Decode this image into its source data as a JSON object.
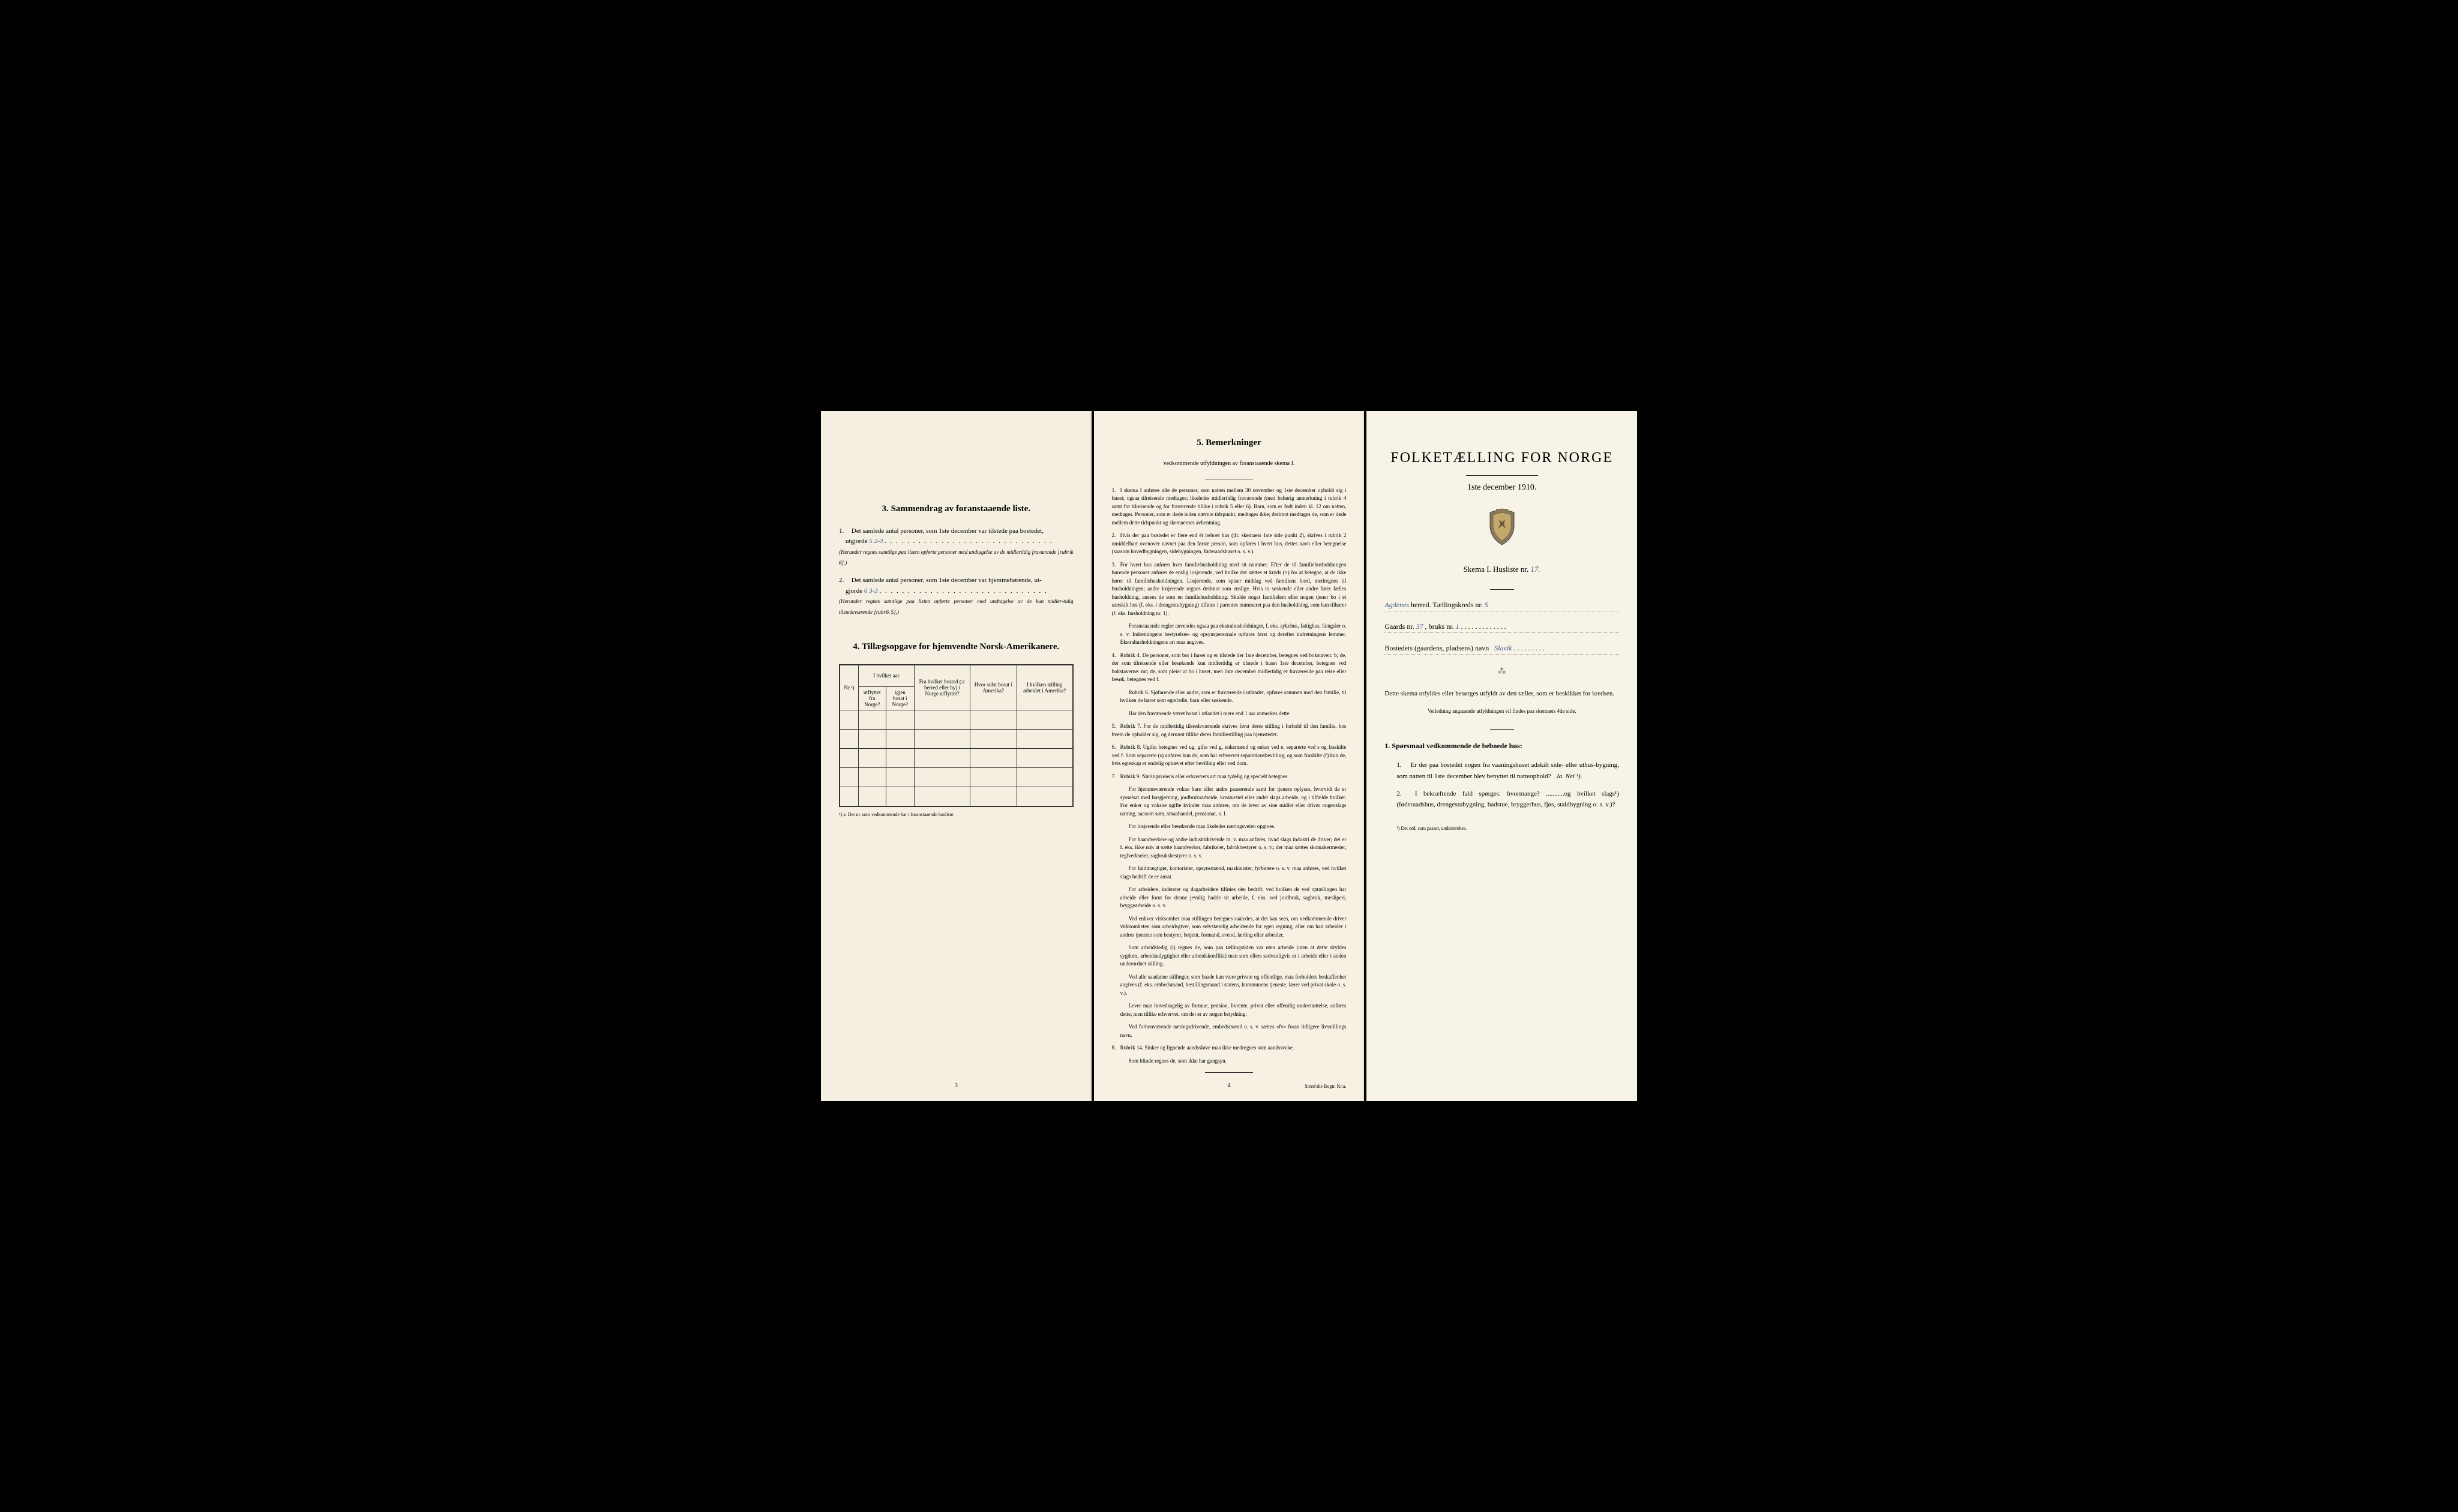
{
  "page1": {
    "section3_title": "3.   Sammendrag av foranstaaende liste.",
    "item1_prefix": "1.",
    "item1_text": "Det samlede antal personer, som 1ste december var tilstede paa bostedet,",
    "item1_line2": "utgjorde",
    "item1_handwritten": "5        2-3",
    "item1_note": "(Herunder regnes samtlige paa listen opførte personer med undtagelse av de midlertidig fraværende [rubrik 6].)",
    "item2_prefix": "2.",
    "item2_text": "Det samlede antal personer, som 1ste december var hjemmehørende, ut-",
    "item2_line2": "gjorde",
    "item2_handwritten": "6        3-3",
    "item2_note": "(Herunder regnes samtlige paa listen opførte personer med undtagelse av de kun midler-tidig tilstedeværende [rubrik 5].)",
    "section4_title": "4.   Tillægsopgave for hjemvendte Norsk-Amerikanere.",
    "table": {
      "headers": {
        "col1": "Nr.¹)",
        "col2_top": "I hvilket aar",
        "col2a": "utflyttet fra Norge?",
        "col2b": "igjen bosat i Norge?",
        "col3": "Fra hvilket bosted (ɔ: herred eller by) i Norge utflyttet?",
        "col4": "Hvor sidst bosat i Amerika?",
        "col5": "I hvilken stilling arbeidet i Amerika?"
      }
    },
    "footnote": "¹) ɔ: Det nr. som vedkommende har i foranstaaende husliste.",
    "page_num": "3"
  },
  "page2": {
    "title": "5.   Bemerkninger",
    "subtitle": "vedkommende utfyldningen av foranstaaende skema I.",
    "remarks": [
      {
        "num": "1.",
        "text": "I skema I anføres alle de personer, som natten mellem 30 november og 1ste december opholdt sig i huset; ogsaa tilreisende medtages; likeledes midlertidig fraværende (med behørig anmerkning i rubrik 4 samt for tilreisende og for fraværende tillike i rubrik 5 eller 6). Barn, som er født inden kl. 12 om natten, medtages. Personer, som er døde inden nævnte tidspunkt, medtages ikke; derimot medtages de, som er døde mellem dette tidspunkt og skemaernes avhentning."
      },
      {
        "num": "2.",
        "text": "Hvis der paa bostedet er flere end ét beboet hus (jfr. skemaets 1ste side punkt 2), skrives i rubrik 2 umiddelbart ovenover navnet paa den første person, som opføres i hvert hus, dettes navn eller betegnelse (saasom hovedbygningen, sidebygningen, føderaadshuset o. s. v.)."
      },
      {
        "num": "3.",
        "text": "For hvert hus anføres hver familiehusholdning med sit nummer. Efter de til familiehusholdningen hørende personer anføres de enslig losjerende, ved hvilke der sættes et kryds (×) for at betegne, at de ikke hører til familiehusholdningen. Losjerende, som spiser middag ved familiens bord, medregnes til husholdningen; andre losjerende regnes derimot som enslige. Hvis to søskende eller andre fører fælles husholdning, ansees de som en familiehusholdning. Skulde noget familielem eller nogen tjener bo i et særskilt hus (f. eks. i drengestubygning) tilføies i parentes nummeret paa den husholdning, som han tilhører (f. eks. husholdning nr. 1)."
      },
      {
        "num": "",
        "text": "Foranstaaende regler anvendes ogsaa paa ekstrahusholdninger, f. eks. sykehus, fattighus, fængsler o. s. v. Indretningens bestyrelses- og opsynspersonale opføres først og derefter indretningens lemmer. Ekstrahusholdningens art maa angives."
      },
      {
        "num": "4.",
        "text": "Rubrik 4. De personer, som bor i huset og er tilstede der 1ste december, betegnes ved bokstaven: b; de, der som tilreisende eller besøkende kun midlertidig er tilstede i huset 1ste december, betegnes ved bokstaverne: mt; de, som pleier at bo i huset, men 1ste december midlertidig er fraværende paa reise eller besøk, betegnes ved f."
      },
      {
        "num": "",
        "text": "Rubrik 6. Sjøfarende eller andre, som er fraværende i utlandet, opføres sammen med den familie, til hvilken de hører som egtefælle, barn eller søskende."
      },
      {
        "num": "",
        "text": "Har den fraværende været bosat i utlandet i mere end 1 aar anmerkes dette."
      },
      {
        "num": "5.",
        "text": "Rubrik 7. For de midlertidig tilstedeværende skrives først deres stilling i forhold til den familie, hos hvem de opholder sig, og dernæst tillike deres familiestilling paa hjemstedet."
      },
      {
        "num": "6.",
        "text": "Rubrik 8. Ugifte betegnes ved ug, gifte ved g, enkemænd og enker ved e, separerte ved s og fraskilte ved f. Som separerte (s) anføres kun de, som har erhvervet separationsbevilling, og som fraskilte (f) kun de, hvis egteskap er endelig ophævet efter bevilling eller ved dom."
      },
      {
        "num": "7.",
        "text": "Rubrik 9. Næringsveiens eller erhvervets art maa tydelig og specielt betegnes."
      },
      {
        "num": "",
        "text": "For hjemmeværende vokne barn eller andre paarørende samt for tjenere oplyses, hvorvidt de er sysselsat med husgjerning, jordbruksarbeide, kreaturstel eller andet slags arbeide, og i tilfælde hvilket. For enker og voksne ugifte kvinder maa anføres, om de lever av sine midler eller driver nogenslags næring, saasom søm, smaahandel, pensionat, o. l."
      },
      {
        "num": "",
        "text": "For losjerende eller besøkende maa likeledes næringsveien opgives."
      },
      {
        "num": "",
        "text": "For haandverkere og andre industridrivende m. v. maa anføres, hvad slags industri de driver; det er f. eks. ikke nok at sætte haandverker, fabrikeier, fabrikbestyrer o. s. v.; der maa sættes skomakermester, teglverkseier, sagbruksbestyrer o. s. v."
      },
      {
        "num": "",
        "text": "For fuldmægtiger, kontorister, opsynsmænd, maskinister, fyrbøtere o. s. v. maa anføres, ved hvilket slags bedrift de er ansat."
      },
      {
        "num": "",
        "text": "For arbeidere, inderster og dagarbeidere tilføies den bedrift, ved hvilken de ved optællingen har arbeide eller forut for denne jevnlig hadde sit arbeide, f. eks. ved jordbruk, sagbruk, træsliperi, bryggearbeide o. s. v."
      },
      {
        "num": "",
        "text": "Ved enhver virksomhet maa stillingen betegnes saaledes, at det kan sees, om vedkommende driver virksomheten som arbeidsgiver, som selvstændig arbeidende for egen regning, eller om han arbeider i andres tjeneste som bestyrer, betjent, formand, svend, lærling eller arbeider."
      },
      {
        "num": "",
        "text": "Som arbeidsledig (l) regnes de, som paa tællingstiden var uten arbeide (uten at dette skyldes sygdom, arbeidsudygtighet eller arbeidskonflikt) men som ellers sedvanligvis er i arbeide eller i anden underordnet stilling."
      },
      {
        "num": "",
        "text": "Ved alle saadanne stillinger, som baade kan være private og offentlige, maa forholdets beskaffenhet angives (f. eks. embedsmand, bestillingsmand i statens, kommunens tjeneste, lærer ved privat skole o. s. v.)."
      },
      {
        "num": "",
        "text": "Lever man hovedsagelig av formue, pension, livrente, privat eller offentlig understøttelse, anføres dette, men tillike erhvervet, om det er av nogen betydning."
      },
      {
        "num": "",
        "text": "Ved forhenværende næringsdrivende, embedsmænd o. s. v. sættes «fv» foran tidligere livsstillings navn."
      },
      {
        "num": "8.",
        "text": "Rubrik 14. Sinker og lignende aandssløve maa ikke medregnes som aandssvake."
      },
      {
        "num": "",
        "text": "Som blinde regnes de, som ikke har gangsyn."
      }
    ],
    "page_num": "4",
    "printer": "Steen'ske Bogtr. Kr.a."
  },
  "page3": {
    "main_title": "FOLKETÆLLING FOR NORGE",
    "subtitle": "1ste december 1910.",
    "skema": "Skema I.   Husliste nr.",
    "skema_num": "17.",
    "herred_label": "herred.   Tællingskreds nr.",
    "herred_value": "Agdenes",
    "kreds_num": "5",
    "gaards_label": "Gaards nr.",
    "gaards_num": "37",
    "bruks_label": ", bruks nr.",
    "bruks_num": "1",
    "bosted_label": "Bostedets (gaardens, pladsens) navn",
    "bosted_value": "Slavik",
    "instruction1": "Dette skema utfyldes eller besørges utfyldt av den tæller, som er beskikket for kredsen.",
    "instruction2": "Veiledning angaaende utfyldningen vil findes paa skemaets 4de side.",
    "question_header": "1. Spørsmaal vedkommende de beboede hus:",
    "q1_num": "1.",
    "q1_text": "Er der paa bostedet nogen fra vaaningshuset adskilt side- eller uthus-bygning, som natten til 1ste december blev benyttet til natteophold?",
    "q1_options": "Ja.   Nei ¹).",
    "q2_num": "2.",
    "q2_text": "I bekræftende fald spørges: hvormange? ...........og hvilket slags¹) (føderaadshus, drengestubygning, badstue, bryggerhus, fjøs, staldbygning o. s. v.)?",
    "footnote": "¹) Det ord, som passer, understrekes."
  },
  "colors": {
    "page_bg": "#f5f0e1",
    "black_bg": "#000000",
    "text": "#1a1a1a",
    "handwritten": "#3a5a8a",
    "border": "#333333"
  }
}
